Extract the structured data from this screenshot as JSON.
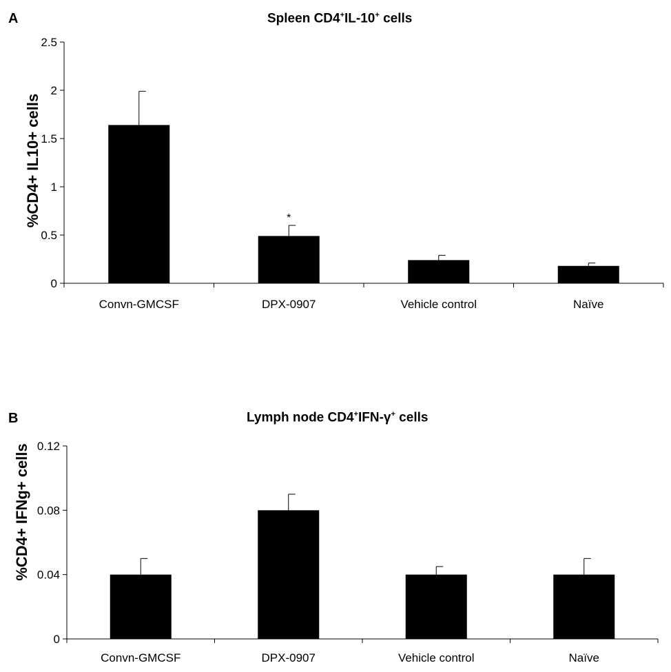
{
  "chart_data": [
    {
      "type": "bar",
      "panel_label": "A",
      "title": {
        "prefix": "Spleen CD4",
        "sup1": "+",
        "mid": "IL-10",
        "sup2": "+",
        "suffix": " cells"
      },
      "ylabel": "%CD4+ IL10+ cells",
      "xlabel": "",
      "categories": [
        "Convn-GMCSF",
        "DPX-0907",
        "Vehicle control",
        "Naïve"
      ],
      "values": [
        1.64,
        0.49,
        0.24,
        0.18
      ],
      "errors": [
        0.35,
        0.11,
        0.05,
        0.03
      ],
      "annotations": [
        "",
        "*",
        "",
        ""
      ],
      "ylim": [
        0,
        2.5
      ],
      "yticks": [
        0,
        0.5,
        1,
        1.5,
        2,
        2.5
      ],
      "ytick_labels": [
        "0",
        "0.5",
        "1",
        "1.5",
        "2",
        "2.5"
      ],
      "grid": false,
      "bar_color": "#000000"
    },
    {
      "type": "bar",
      "panel_label": "B",
      "title": {
        "prefix": "Lymph node CD4",
        "sup1": "+",
        "mid": "IFN-γ",
        "sup2": "+",
        "suffix": " cells"
      },
      "ylabel": "%CD4+ IFNg+ cells",
      "xlabel": "",
      "categories": [
        "Convn-GMCSF",
        "DPX-0907",
        "Vehicle control",
        "Naïve"
      ],
      "values": [
        0.04,
        0.08,
        0.04,
        0.04
      ],
      "errors": [
        0.01,
        0.01,
        0.005,
        0.01
      ],
      "annotations": [
        "",
        "",
        "",
        ""
      ],
      "ylim": [
        0,
        0.12
      ],
      "yticks": [
        0,
        0.04,
        0.08,
        0.12
      ],
      "ytick_labels": [
        "0",
        "0.04",
        "0.08",
        "0.12"
      ],
      "grid": false,
      "bar_color": "#000000"
    }
  ]
}
